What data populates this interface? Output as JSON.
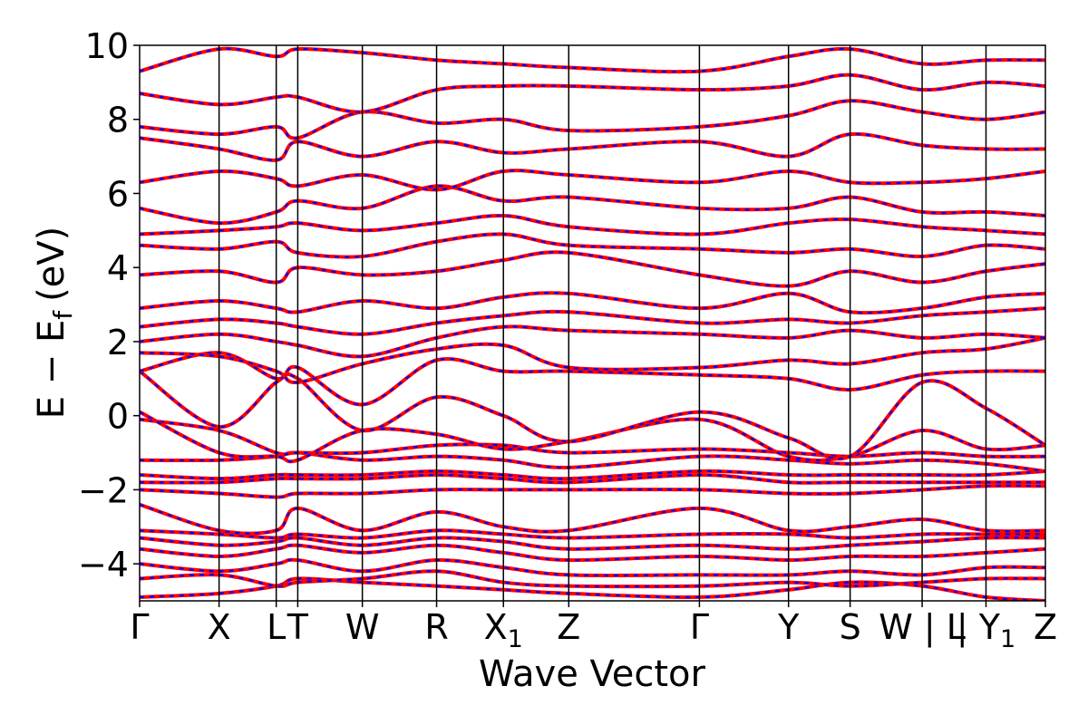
{
  "chart_data": {
    "type": "line",
    "title": "",
    "xlabel": "Wave Vector",
    "ylabel": "E − E",
    "ylabel_sub": "f",
    "ylabel_unit": "(eV)",
    "ylim": [
      -5,
      10
    ],
    "yticks": [
      {
        "value": -4,
        "label": "−4"
      },
      {
        "value": -2,
        "label": "−2"
      },
      {
        "value": 0,
        "label": "0"
      },
      {
        "value": 2,
        "label": "2"
      },
      {
        "value": 4,
        "label": "4"
      },
      {
        "value": 6,
        "label": "6"
      },
      {
        "value": 8,
        "label": "8"
      },
      {
        "value": 10,
        "label": "10"
      }
    ],
    "xlim": [
      0,
      12.2
    ],
    "kpoints": [
      {
        "pos": 0.0,
        "label": "Γ"
      },
      {
        "pos": 1.07,
        "label": "X"
      },
      {
        "pos": 1.84,
        "label": "L"
      },
      {
        "pos": 2.13,
        "label": "T"
      },
      {
        "pos": 3.0,
        "label": "W"
      },
      {
        "pos": 4.0,
        "label": "R"
      },
      {
        "pos": 4.9,
        "label": "X",
        "sub": "1"
      },
      {
        "pos": 5.78,
        "label": "Z"
      },
      {
        "pos": 7.54,
        "label": "Γ"
      },
      {
        "pos": 8.74,
        "label": "Y"
      },
      {
        "pos": 9.57,
        "label": "S"
      },
      {
        "pos": 10.54,
        "label": "W | L"
      },
      {
        "pos": 11.4,
        "label": "| Y",
        "sub": "1"
      },
      {
        "pos": 12.2,
        "label": "Z"
      }
    ],
    "series_colors": {
      "solid": "#ff0000",
      "dashed": "#0000ff"
    },
    "grid": false,
    "bands": [
      {
        "values": [
          -4.9,
          -4.8,
          -4.6,
          -4.4,
          -4.5,
          -4.6,
          -4.7,
          -4.8,
          -4.9,
          -4.7,
          -4.5,
          -4.6,
          -4.9,
          -5.0
        ]
      },
      {
        "values": [
          -4.4,
          -4.3,
          -4.6,
          -4.5,
          -4.4,
          -4.2,
          -4.5,
          -4.6,
          -4.6,
          -4.5,
          -4.6,
          -4.5,
          -4.4,
          -4.4
        ]
      },
      {
        "values": [
          -4.0,
          -4.2,
          -4.0,
          -3.9,
          -4.2,
          -3.9,
          -4.1,
          -4.3,
          -4.3,
          -4.3,
          -4.2,
          -4.3,
          -4.1,
          -4.1
        ]
      },
      {
        "values": [
          -3.6,
          -3.8,
          -3.6,
          -3.5,
          -3.7,
          -3.5,
          -3.7,
          -3.9,
          -3.8,
          -3.9,
          -3.8,
          -3.8,
          -3.7,
          -3.6
        ]
      },
      {
        "values": [
          -3.3,
          -3.5,
          -3.4,
          -3.3,
          -3.5,
          -3.3,
          -3.4,
          -3.6,
          -3.5,
          -3.6,
          -3.5,
          -3.4,
          -3.3,
          -3.3
        ]
      },
      {
        "values": [
          -3.1,
          -3.2,
          -3.3,
          -3.2,
          -3.3,
          -3.1,
          -3.2,
          -3.3,
          -3.2,
          -3.2,
          -3.3,
          -3.2,
          -3.2,
          -3.2
        ]
      },
      {
        "values": [
          -2.4,
          -3.1,
          -3.1,
          -2.5,
          -3.1,
          -2.6,
          -3.0,
          -3.1,
          -2.5,
          -3.1,
          -3.0,
          -2.8,
          -3.1,
          -3.1
        ]
      },
      {
        "values": [
          -2.0,
          -2.1,
          -2.2,
          -2.1,
          -2.1,
          -2.0,
          -2.0,
          -2.0,
          -2.0,
          -2.1,
          -2.1,
          -2.0,
          -1.9,
          -1.9
        ]
      },
      {
        "values": [
          -1.8,
          -1.8,
          -1.7,
          -1.7,
          -1.7,
          -1.6,
          -1.7,
          -1.8,
          -1.6,
          -1.8,
          -1.8,
          -1.8,
          -1.8,
          -1.8
        ]
      },
      {
        "values": [
          -1.6,
          -1.7,
          -1.6,
          -1.6,
          -1.6,
          -1.5,
          -1.6,
          -1.7,
          -1.5,
          -1.6,
          -1.6,
          -1.6,
          -1.6,
          -1.5
        ]
      },
      {
        "values": [
          -1.2,
          -1.2,
          -1.1,
          -1.0,
          -1.2,
          -1.1,
          -1.2,
          -1.4,
          -1.1,
          -1.2,
          -1.3,
          -1.2,
          -1.3,
          -1.5
        ]
      },
      {
        "values": [
          -0.1,
          -0.4,
          -1.0,
          -1.0,
          -1.0,
          -0.8,
          -0.8,
          -1.0,
          -0.9,
          -1.0,
          -1.1,
          -1.0,
          -1.1,
          -1.1
        ]
      },
      {
        "values": [
          0.1,
          -1.0,
          -1.1,
          -1.2,
          -0.4,
          -0.5,
          -0.9,
          -0.7,
          -0.1,
          -1.1,
          -1.1,
          -0.4,
          -0.9,
          -0.8
        ]
      },
      {
        "values": [
          1.2,
          -0.3,
          0.9,
          1.0,
          -0.4,
          0.5,
          0.0,
          -0.7,
          0.1,
          -0.6,
          -1.1,
          0.9,
          0.2,
          -0.8
        ]
      },
      {
        "values": [
          1.2,
          1.7,
          1.0,
          1.3,
          0.3,
          1.5,
          1.2,
          1.2,
          1.1,
          1.0,
          0.7,
          1.1,
          1.2,
          1.2
        ]
      },
      {
        "values": [
          1.7,
          1.6,
          1.2,
          0.9,
          1.4,
          1.8,
          1.9,
          1.3,
          1.3,
          1.5,
          1.4,
          1.7,
          1.8,
          2.1
        ]
      },
      {
        "values": [
          2.0,
          2.2,
          2.0,
          1.9,
          1.6,
          2.1,
          2.4,
          2.3,
          2.2,
          2.1,
          2.3,
          2.1,
          2.2,
          2.1
        ]
      },
      {
        "values": [
          2.4,
          2.6,
          2.5,
          2.4,
          2.2,
          2.5,
          2.7,
          2.8,
          2.5,
          2.6,
          2.5,
          2.7,
          2.8,
          2.9
        ]
      },
      {
        "values": [
          2.9,
          3.1,
          2.9,
          2.8,
          3.1,
          2.9,
          3.2,
          3.3,
          2.9,
          3.3,
          2.8,
          2.9,
          3.2,
          3.3
        ]
      },
      {
        "values": [
          3.8,
          3.9,
          3.6,
          4.0,
          3.8,
          3.9,
          4.2,
          4.4,
          3.8,
          3.5,
          3.9,
          3.6,
          3.9,
          4.1
        ]
      },
      {
        "values": [
          4.6,
          4.5,
          4.7,
          4.4,
          4.3,
          4.7,
          4.9,
          4.6,
          4.5,
          4.4,
          4.5,
          4.3,
          4.6,
          4.5
        ]
      },
      {
        "values": [
          4.9,
          5.0,
          5.1,
          5.2,
          5.0,
          5.2,
          5.4,
          5.1,
          4.9,
          5.2,
          5.3,
          5.1,
          5.0,
          4.9
        ]
      },
      {
        "values": [
          5.6,
          5.2,
          5.5,
          5.8,
          5.6,
          6.2,
          5.8,
          5.9,
          5.6,
          5.6,
          5.9,
          5.5,
          5.5,
          5.4
        ]
      },
      {
        "values": [
          6.3,
          6.6,
          6.4,
          6.2,
          6.5,
          6.1,
          6.6,
          6.5,
          6.3,
          6.6,
          6.3,
          6.3,
          6.4,
          6.6
        ]
      },
      {
        "values": [
          7.5,
          7.2,
          6.9,
          7.4,
          7.0,
          7.4,
          7.1,
          7.2,
          7.4,
          7.0,
          7.6,
          7.3,
          7.2,
          7.2
        ]
      },
      {
        "values": [
          7.8,
          7.6,
          7.8,
          7.5,
          8.2,
          7.9,
          8.0,
          7.7,
          7.8,
          8.1,
          8.5,
          8.2,
          8.0,
          8.2
        ]
      },
      {
        "values": [
          8.7,
          8.4,
          8.6,
          8.6,
          8.2,
          8.8,
          8.9,
          8.9,
          8.8,
          8.9,
          9.2,
          8.8,
          9.0,
          8.9
        ]
      },
      {
        "values": [
          9.3,
          9.9,
          9.7,
          9.9,
          9.8,
          9.6,
          9.5,
          9.4,
          9.3,
          9.7,
          9.9,
          9.5,
          9.6,
          9.6
        ]
      }
    ]
  }
}
